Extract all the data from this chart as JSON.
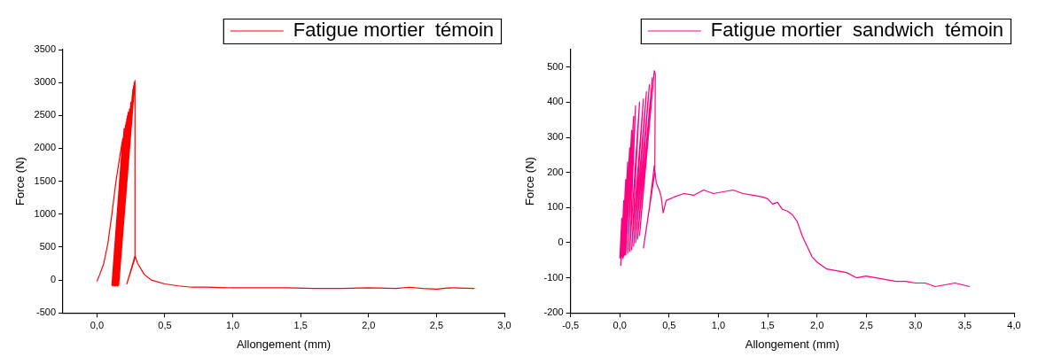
{
  "chart_data": [
    {
      "type": "line",
      "xlabel": "Allongement (mm)",
      "ylabel": "Force (N)",
      "legend": "top",
      "xlim": [
        -0.25,
        3.0
      ],
      "ylim": [
        -500,
        3500
      ],
      "xticks": [
        {
          "value": 0,
          "label": "0,0"
        },
        {
          "value": 0.5,
          "label": "0,5"
        },
        {
          "value": 1,
          "label": "1,0"
        },
        {
          "value": 1.5,
          "label": "1,5"
        },
        {
          "value": 2,
          "label": "2,0"
        },
        {
          "value": 2.5,
          "label": "2,5"
        },
        {
          "value": 3,
          "label": "3,0"
        }
      ],
      "yticks": [
        -500,
        0,
        500,
        1000,
        1500,
        2000,
        2500,
        3000,
        3500
      ],
      "series": [
        {
          "name": "Fatigue mortier  témoin",
          "color": "#ff0000",
          "x": [
            0,
            0.02,
            0.05,
            0.08,
            0.11,
            0.14,
            0.17,
            0.19,
            0.11,
            0.195,
            0.115,
            0.2,
            0.12,
            0.205,
            0.12,
            0.21,
            0.125,
            0.215,
            0.13,
            0.22,
            0.13,
            0.225,
            0.135,
            0.23,
            0.14,
            0.24,
            0.14,
            0.25,
            0.145,
            0.26,
            0.15,
            0.265,
            0.15,
            0.27,
            0.155,
            0.275,
            0.16,
            0.28,
            0.28,
            0.275,
            0.22,
            0.25,
            0.28,
            0.3,
            0.35,
            0.4,
            0.5,
            0.6,
            0.7,
            0.8,
            1.0,
            1.2,
            1.4,
            1.6,
            1.8,
            2.0,
            2.2,
            2.3,
            2.4,
            2.5,
            2.6,
            2.78
          ],
          "values": [
            -20,
            80,
            250,
            550,
            1000,
            1500,
            1900,
            2150,
            -80,
            2150,
            -90,
            2300,
            -80,
            2300,
            -90,
            2350,
            -80,
            2400,
            -90,
            2450,
            -80,
            2500,
            -90,
            2550,
            -80,
            2600,
            -90,
            2700,
            -80,
            2800,
            -90,
            2900,
            -80,
            2950,
            -90,
            3000,
            -80,
            3030,
            370,
            300,
            -60,
            150,
            370,
            250,
            80,
            0,
            -60,
            -90,
            -110,
            -110,
            -120,
            -120,
            -120,
            -130,
            -130,
            -120,
            -130,
            -110,
            -130,
            -140,
            -120,
            -130
          ]
        }
      ]
    },
    {
      "type": "line",
      "xlabel": "Allongement (mm)",
      "ylabel": "Force (N)",
      "legend": "top",
      "xlim": [
        -0.5,
        4.0
      ],
      "ylim": [
        -200,
        550
      ],
      "xticks": [
        {
          "value": -0.5,
          "label": "-0,5"
        },
        {
          "value": 0,
          "label": "0,0"
        },
        {
          "value": 0.5,
          "label": "0,5"
        },
        {
          "value": 1,
          "label": "1,0"
        },
        {
          "value": 1.5,
          "label": "1,5"
        },
        {
          "value": 2,
          "label": "2,0"
        },
        {
          "value": 2.5,
          "label": "2,5"
        },
        {
          "value": 3,
          "label": "3,0"
        },
        {
          "value": 3.5,
          "label": "3,5"
        },
        {
          "value": 4,
          "label": "4,0"
        }
      ],
      "yticks": [
        -200,
        -100,
        0,
        100,
        200,
        300,
        400,
        500
      ],
      "series": [
        {
          "name": "Fatigue mortier  sandwich  témoin",
          "color": "#ff0080",
          "x": [
            0,
            0.02,
            0.01,
            0.04,
            0.02,
            0.06,
            0.03,
            0.08,
            0.04,
            0.1,
            0.05,
            0.12,
            0.06,
            0.14,
            0.08,
            0.16,
            0.1,
            0.2,
            0.12,
            0.24,
            0.14,
            0.27,
            0.16,
            0.3,
            0.18,
            0.33,
            0.2,
            0.35,
            0.36,
            0.355,
            0.24,
            0.3,
            0.35,
            0.37,
            0.4,
            0.42,
            0.44,
            0.47,
            0.55,
            0.65,
            0.75,
            0.85,
            0.95,
            1.05,
            1.15,
            1.25,
            1.35,
            1.45,
            1.5,
            1.55,
            1.6,
            1.65,
            1.7,
            1.75,
            1.8,
            1.85,
            1.9,
            1.95,
            2.0,
            2.1,
            2.2,
            2.3,
            2.4,
            2.5,
            2.6,
            2.7,
            2.8,
            2.9,
            3.0,
            3.1,
            3.2,
            3.3,
            3.4,
            3.55
          ],
          "values": [
            -45,
            70,
            -65,
            120,
            -40,
            180,
            -45,
            230,
            -40,
            270,
            -35,
            320,
            -35,
            360,
            -30,
            390,
            -25,
            400,
            -20,
            410,
            -10,
            430,
            0,
            450,
            10,
            470,
            20,
            490,
            480,
            200,
            -15,
            100,
            220,
            170,
            150,
            130,
            85,
            120,
            130,
            140,
            135,
            150,
            140,
            145,
            150,
            140,
            135,
            130,
            125,
            110,
            115,
            95,
            90,
            80,
            60,
            20,
            -10,
            -40,
            -55,
            -75,
            -80,
            -85,
            -100,
            -95,
            -100,
            -105,
            -110,
            -110,
            -115,
            -115,
            -125,
            -120,
            -115,
            -125
          ]
        }
      ]
    }
  ]
}
